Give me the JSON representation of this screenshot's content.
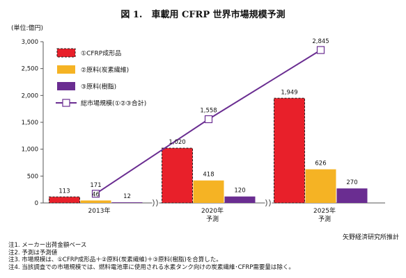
{
  "chart_data": {
    "type": "bar",
    "title": "図 1.　車載用 CFRP 世界市場規模予測",
    "unit_label": "(単位:億円)",
    "categories": [
      {
        "lines": [
          "2013年"
        ]
      },
      {
        "lines": [
          "2020年",
          "予測"
        ]
      },
      {
        "lines": [
          "2025年",
          "予測"
        ]
      }
    ],
    "series": [
      {
        "name": "①CFRP成形品",
        "kind": "bar",
        "color": "#e8202a",
        "values": [
          113,
          1020,
          1949
        ]
      },
      {
        "name": "②原料(炭素繊維)",
        "kind": "bar",
        "color": "#f5b324",
        "values": [
          46,
          418,
          626
        ]
      },
      {
        "name": "③原料(樹脂)",
        "kind": "bar",
        "color": "#6a2d91",
        "values": [
          12,
          120,
          270
        ]
      },
      {
        "name": "総市場規模(①②③合計)",
        "kind": "line",
        "color": "#6a2d91",
        "values": [
          171,
          1558,
          2845
        ]
      }
    ],
    "ylim": [
      0,
      3000
    ],
    "yticks": [
      "0",
      "500",
      "1,000",
      "1,500",
      "2,000",
      "2,500",
      "3,000"
    ],
    "axis_break": true,
    "legend_position": "top-left",
    "grid": false
  },
  "credit": "矢野経済研究所推計",
  "notes": [
    "注1. メーカー出荷金額ベース",
    "注2. 予測は予測値",
    "注3. 市場規模は、①CFRP成形品＋②原料(炭素繊維)＋③原料(樹脂)を合算した。",
    "注4. 当該調査での市場規模では、燃料電池車に使用される水素タンク向けの炭素繊維･CFRP需要量は除く。"
  ]
}
